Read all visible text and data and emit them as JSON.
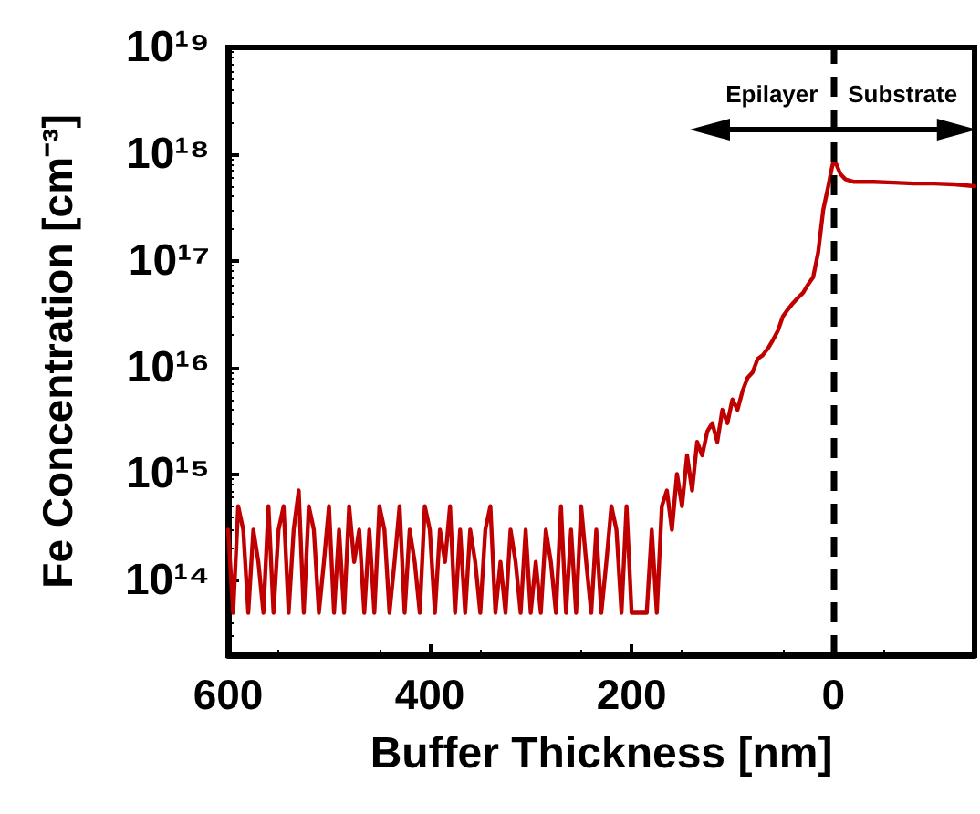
{
  "chart_data": {
    "type": "line",
    "xlabel": "Buffer Thickness [nm]",
    "ylabel": "Fe Concentration [cm⁻³]",
    "log": "y",
    "grid": false,
    "marker": "none",
    "line_style": "solid",
    "xlim": [
      600,
      -140
    ],
    "xticks": [
      600,
      400,
      200,
      0
    ],
    "ylim": [
      20000000000000.0,
      1e+19
    ],
    "yticks": [
      {
        "value": 100000000000000.0,
        "label": "10¹⁴"
      },
      {
        "value": 1000000000000000.0,
        "label": "10¹⁵"
      },
      {
        "value": 1e+16,
        "label": "10¹⁶"
      },
      {
        "value": 1e+17,
        "label": "10¹⁷"
      },
      {
        "value": 1e+18,
        "label": "10¹⁸"
      },
      {
        "value": 1e+19,
        "label": "10¹⁹"
      }
    ],
    "ref_lines": [
      {
        "axis": "x",
        "value": 0,
        "label": null,
        "color": "#000000",
        "line_style": "dashed"
      }
    ],
    "annotations": [
      "Epilayer",
      "Substrate"
    ],
    "series": [
      {
        "color": "#c00000",
        "x": [
          600,
          595,
          590,
          585,
          580,
          575,
          570,
          565,
          560,
          555,
          550,
          545,
          540,
          535,
          530,
          525,
          520,
          515,
          510,
          505,
          500,
          495,
          490,
          485,
          480,
          475,
          470,
          465,
          460,
          455,
          450,
          445,
          440,
          435,
          430,
          425,
          420,
          415,
          410,
          405,
          400,
          395,
          390,
          385,
          380,
          375,
          370,
          365,
          360,
          355,
          350,
          345,
          340,
          335,
          330,
          325,
          320,
          315,
          310,
          305,
          300,
          295,
          290,
          285,
          280,
          275,
          270,
          265,
          260,
          255,
          250,
          245,
          240,
          235,
          230,
          225,
          220,
          215,
          210,
          205,
          200,
          195,
          190,
          185,
          180,
          175,
          170,
          165,
          160,
          155,
          150,
          145,
          140,
          135,
          130,
          125,
          120,
          115,
          110,
          105,
          100,
          95,
          90,
          85,
          80,
          75,
          70,
          65,
          60,
          55,
          50,
          45,
          40,
          35,
          30,
          25,
          20,
          15,
          10,
          5,
          2,
          0,
          -3,
          -7,
          -12,
          -20,
          -40,
          -60,
          -80,
          -100,
          -120,
          -140
        ],
        "values": [
          300000000000000.0,
          50000000000000.0,
          500000000000000.0,
          300000000000000.0,
          50000000000000.0,
          300000000000000.0,
          150000000000000.0,
          50000000000000.0,
          500000000000000.0,
          50000000000000.0,
          300000000000000.0,
          500000000000000.0,
          50000000000000.0,
          300000000000000.0,
          700000000000000.0,
          50000000000000.0,
          500000000000000.0,
          300000000000000.0,
          50000000000000.0,
          150000000000000.0,
          500000000000000.0,
          50000000000000.0,
          300000000000000.0,
          50000000000000.0,
          500000000000000.0,
          150000000000000.0,
          300000000000000.0,
          50000000000000.0,
          300000000000000.0,
          50000000000000.0,
          500000000000000.0,
          300000000000000.0,
          50000000000000.0,
          150000000000000.0,
          500000000000000.0,
          50000000000000.0,
          300000000000000.0,
          150000000000000.0,
          50000000000000.0,
          500000000000000.0,
          300000000000000.0,
          50000000000000.0,
          300000000000000.0,
          150000000000000.0,
          500000000000000.0,
          50000000000000.0,
          300000000000000.0,
          50000000000000.0,
          300000000000000.0,
          150000000000000.0,
          50000000000000.0,
          300000000000000.0,
          500000000000000.0,
          50000000000000.0,
          150000000000000.0,
          50000000000000.0,
          300000000000000.0,
          150000000000000.0,
          50000000000000.0,
          300000000000000.0,
          50000000000000.0,
          150000000000000.0,
          50000000000000.0,
          300000000000000.0,
          150000000000000.0,
          50000000000000.0,
          500000000000000.0,
          50000000000000.0,
          300000000000000.0,
          50000000000000.0,
          500000000000000.0,
          150000000000000.0,
          50000000000000.0,
          300000000000000.0,
          50000000000000.0,
          150000000000000.0,
          500000000000000.0,
          300000000000000.0,
          50000000000000.0,
          500000000000000.0,
          50000000000000.0,
          50000000000000.0,
          50000000000000.0,
          50000000000000.0,
          300000000000000.0,
          50000000000000.0,
          500000000000000.0,
          700000000000000.0,
          300000000000000.0,
          1000000000000000.0,
          500000000000000.0,
          1500000000000000.0,
          700000000000000.0,
          2000000000000000.0,
          1500000000000000.0,
          2500000000000000.0,
          3000000000000000.0,
          2000000000000000.0,
          4000000000000000.0,
          3000000000000000.0,
          5000000000000000.0,
          4000000000000000.0,
          6000000000000000.0,
          8000000000000000.0,
          9000000000000000.0,
          1.2e+16,
          1.3e+16,
          1.5e+16,
          1.8e+16,
          2.2e+16,
          3e+16,
          3.5e+16,
          4e+16,
          4.5e+16,
          5e+16,
          6e+16,
          7e+16,
          1.2e+17,
          3e+17,
          5e+17,
          7e+17,
          8.5e+17,
          8e+17,
          6.5e+17,
          5.8e+17,
          5.5e+17,
          5.5e+17,
          5.4e+17,
          5.3e+17,
          5.3e+17,
          5.2e+17,
          5e+17
        ]
      }
    ]
  }
}
